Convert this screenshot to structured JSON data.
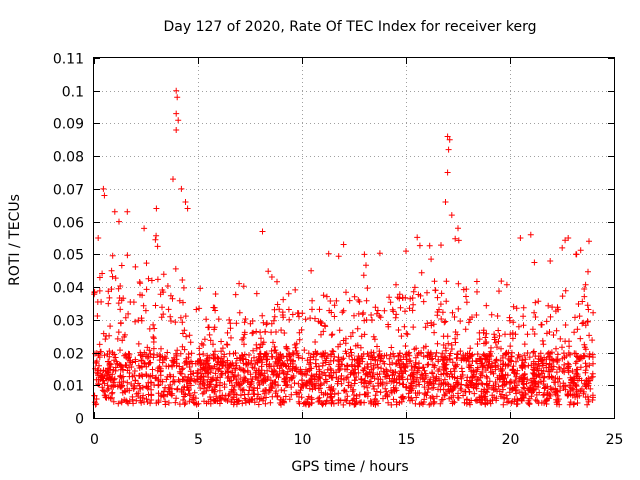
{
  "chart_data": {
    "type": "scatter",
    "title": "Day 127 of 2020, Rate Of TEC Index for receiver kerg",
    "xlabel": "GPS time / hours",
    "ylabel": "ROTI / TECUs",
    "xlim": [
      0,
      25
    ],
    "ylim": [
      0,
      0.11
    ],
    "xticks": [
      0,
      5,
      10,
      15,
      20,
      25
    ],
    "xtick_labels": [
      "0",
      "5",
      "10",
      "15",
      "20",
      "25"
    ],
    "yticks": [
      0,
      0.01,
      0.02,
      0.03,
      0.04,
      0.05,
      0.06,
      0.07,
      0.08,
      0.09,
      0.1,
      0.11
    ],
    "ytick_labels": [
      "0",
      "0.01",
      "0.02",
      "0.03",
      "0.04",
      "0.05",
      "0.06",
      "0.07",
      "0.08",
      "0.09",
      "0.1",
      "0.11"
    ],
    "grid": true,
    "marker": "+",
    "color": "#ff0000",
    "x_data_range_hours": [
      0,
      24
    ],
    "typical_roti_range": [
      0.005,
      0.03
    ],
    "series": [
      {
        "name": "ROTI",
        "peak_points": [
          {
            "x": 0.2,
            "y": 0.055
          },
          {
            "x": 0.45,
            "y": 0.07
          },
          {
            "x": 0.5,
            "y": 0.068
          },
          {
            "x": 1.0,
            "y": 0.063
          },
          {
            "x": 1.2,
            "y": 0.06
          },
          {
            "x": 1.6,
            "y": 0.063
          },
          {
            "x": 3.0,
            "y": 0.064
          },
          {
            "x": 3.8,
            "y": 0.073
          },
          {
            "x": 3.95,
            "y": 0.1
          },
          {
            "x": 4.0,
            "y": 0.098
          },
          {
            "x": 3.95,
            "y": 0.093
          },
          {
            "x": 4.05,
            "y": 0.091
          },
          {
            "x": 3.95,
            "y": 0.088
          },
          {
            "x": 4.2,
            "y": 0.07
          },
          {
            "x": 4.4,
            "y": 0.066
          },
          {
            "x": 4.5,
            "y": 0.064
          },
          {
            "x": 8.1,
            "y": 0.057
          },
          {
            "x": 12.0,
            "y": 0.053
          },
          {
            "x": 13.0,
            "y": 0.05
          },
          {
            "x": 15.0,
            "y": 0.051
          },
          {
            "x": 16.9,
            "y": 0.066
          },
          {
            "x": 17.0,
            "y": 0.086
          },
          {
            "x": 17.1,
            "y": 0.085
          },
          {
            "x": 17.05,
            "y": 0.082
          },
          {
            "x": 17.0,
            "y": 0.075
          },
          {
            "x": 17.2,
            "y": 0.062
          },
          {
            "x": 17.5,
            "y": 0.058
          },
          {
            "x": 20.5,
            "y": 0.055
          },
          {
            "x": 21.0,
            "y": 0.056
          },
          {
            "x": 22.8,
            "y": 0.055
          },
          {
            "x": 23.2,
            "y": 0.05
          },
          {
            "x": 23.8,
            "y": 0.054
          }
        ]
      }
    ]
  }
}
